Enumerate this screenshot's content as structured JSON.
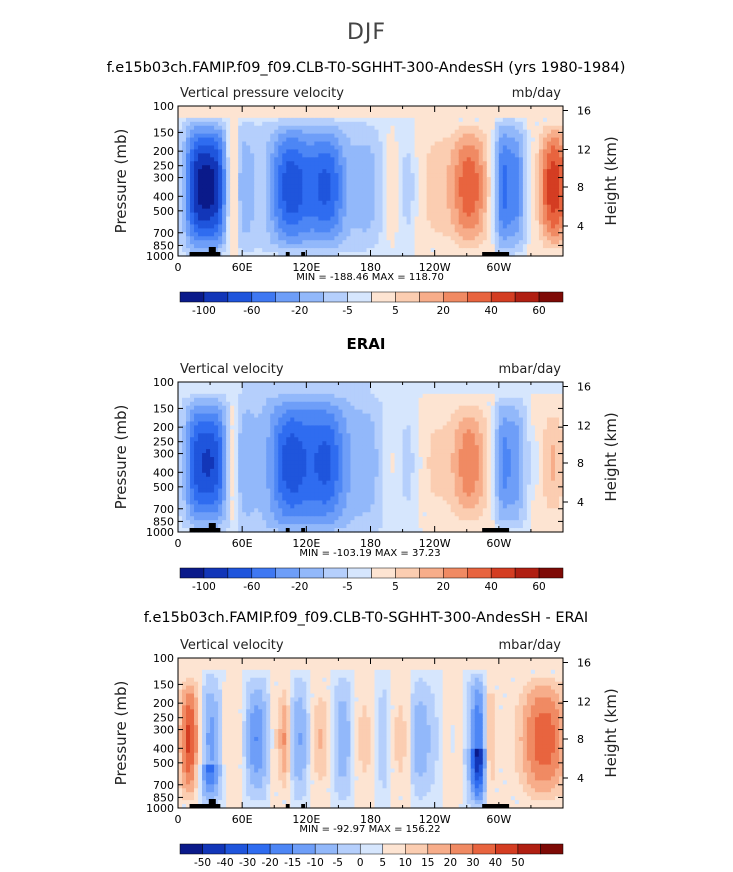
{
  "figure": {
    "title": "DJF"
  },
  "chart_data": [
    {
      "type": "heatmap",
      "title": "f.e15b03ch.FAMIP.f09_f09.CLB-T0-SGHHT-300-AndesSH (yrs 1980-1984)",
      "left_label": "Vertical pressure velocity",
      "right_label": "mb/day",
      "ylabel": "Pressure (mb)",
      "y2label": "Height (km)",
      "x_ticks": [
        "0",
        "60E",
        "120E",
        "180",
        "120W",
        "60W"
      ],
      "y_ticks": [
        "100",
        "150",
        "200",
        "250",
        "300",
        "400",
        "500",
        "700",
        "850",
        "1000"
      ],
      "y2_ticks": [
        "16",
        "12",
        "8",
        "4"
      ],
      "stats": "MIN = -188.46   MAX = 118.70",
      "colorbar_ticks": [
        "-100",
        "-60",
        "-20",
        "-5",
        "5",
        "20",
        "40",
        "60"
      ],
      "ylim": [
        1000,
        100
      ]
    },
    {
      "type": "heatmap",
      "title": "ERAI",
      "left_label": "Vertical velocity",
      "right_label": "mbar/day",
      "ylabel": "Pressure (mb)",
      "y2label": "Height (km)",
      "x_ticks": [
        "0",
        "60E",
        "120E",
        "180",
        "120W",
        "60W"
      ],
      "y_ticks": [
        "100",
        "150",
        "200",
        "250",
        "300",
        "400",
        "500",
        "700",
        "850",
        "1000"
      ],
      "y2_ticks": [
        "16",
        "12",
        "8",
        "4"
      ],
      "stats": "MIN = -103.19   MAX =  37.23",
      "colorbar_ticks": [
        "-100",
        "-60",
        "-20",
        "-5",
        "5",
        "20",
        "40",
        "60"
      ],
      "ylim": [
        1000,
        100
      ]
    },
    {
      "type": "heatmap",
      "title": "f.e15b03ch.FAMIP.f09_f09.CLB-T0-SGHHT-300-AndesSH - ERAI",
      "left_label": "Vertical velocity",
      "right_label": "mbar/day",
      "ylabel": "Pressure (mb)",
      "y2label": "Height (km)",
      "x_ticks": [
        "0",
        "60E",
        "120E",
        "180",
        "120W",
        "60W"
      ],
      "y_ticks": [
        "100",
        "150",
        "200",
        "250",
        "300",
        "400",
        "500",
        "700",
        "850",
        "1000"
      ],
      "y2_ticks": [
        "16",
        "12",
        "8",
        "4"
      ],
      "stats": "MIN = -92.97   MAX = 156.22",
      "colorbar_ticks": [
        "-50",
        "-40",
        "-30",
        "-20",
        "-15",
        "-10",
        "-5",
        "0",
        "5",
        "10",
        "15",
        "20",
        "30",
        "40",
        "50"
      ],
      "ylim": [
        1000,
        100
      ]
    }
  ],
  "colors": {
    "palette17": [
      "#0a1a8a",
      "#1236b8",
      "#1f55dc",
      "#2f6cf0",
      "#4d86f5",
      "#6e9ef8",
      "#92b8fa",
      "#b5cffc",
      "#d6e6fd",
      "#fde4d2",
      "#fbcdb1",
      "#f7ad8a",
      "#f08a63",
      "#e8643f",
      "#d43d22",
      "#b01f12",
      "#7e0a06"
    ],
    "colorbar_top": [
      "#0a1a8a",
      "#1236b8",
      "#1f55dc",
      "#3f78f2",
      "#6e9ef8",
      "#92b8fa",
      "#b5cffc",
      "#d6e6fd",
      "#fde4d2",
      "#fbcdb1",
      "#f7ad8a",
      "#f08a63",
      "#e8643f",
      "#d43d22",
      "#b01f12",
      "#7e0a06"
    ]
  }
}
